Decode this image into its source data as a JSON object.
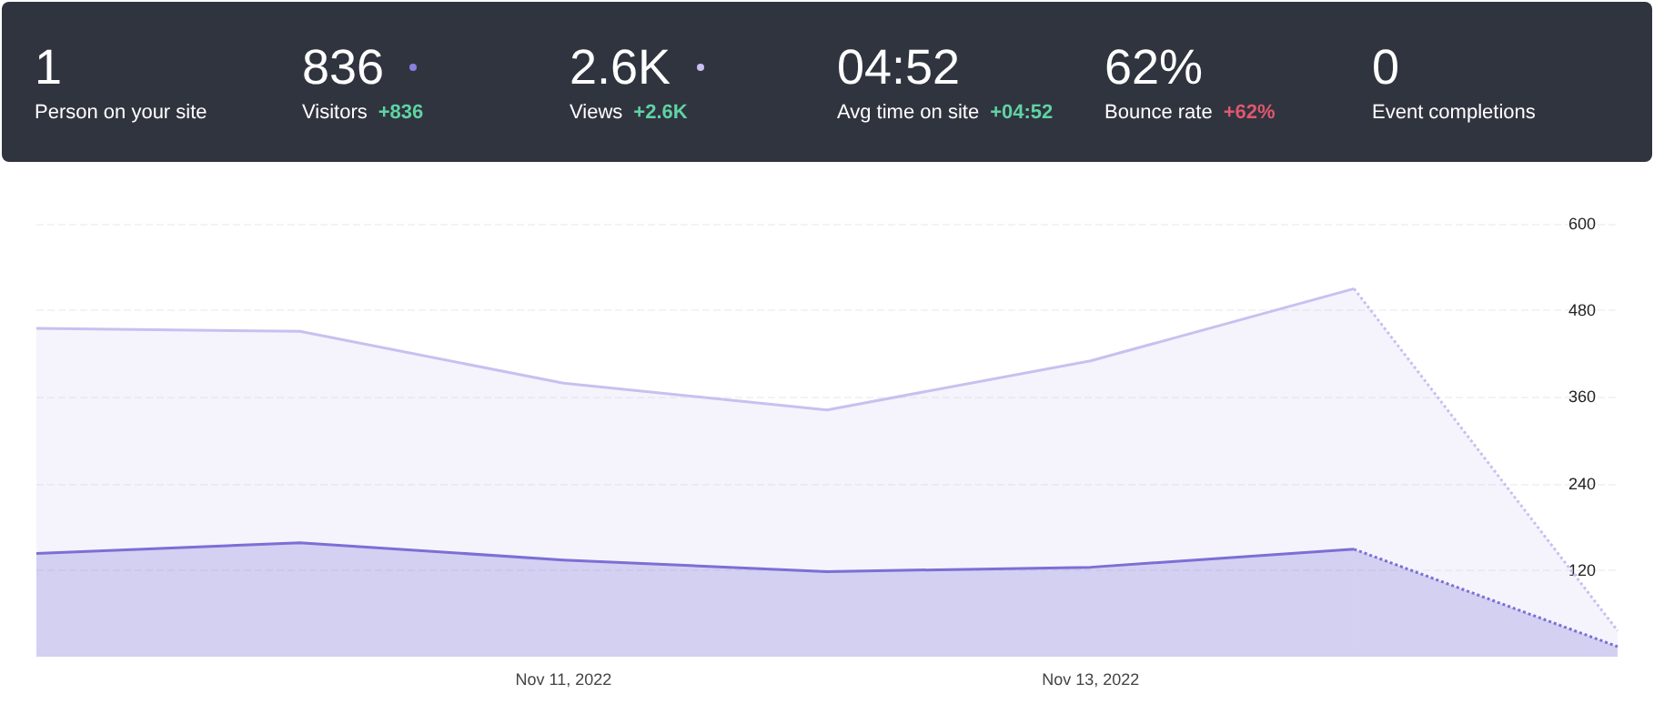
{
  "chart_data": [
    {
      "type": "other",
      "categories": [
        "Person on your site",
        "Visitors",
        "Views",
        "Avg time on site",
        "Bounce rate",
        "Event completions"
      ],
      "value_labels": [
        "1",
        "836",
        "2.6K",
        "04:52",
        "62%",
        "0"
      ],
      "annotations": [
        null,
        "+836",
        "+2.6K",
        "+04:52",
        "+62%",
        null
      ],
      "colors": [
        null,
        "#8b7fe0",
        "#c9c0f0",
        null,
        null,
        null
      ]
    },
    {
      "type": "area",
      "categories": [
        null,
        null,
        "Nov 11, 2022",
        null,
        "Nov 13, 2022",
        null,
        null
      ],
      "series": [
        {
          "color": "#c9c0f0",
          "line_style": "solid",
          "values": [
            455,
            451,
            379,
            342,
            410,
            510,
            null
          ]
        },
        {
          "color": "#c9c0f0",
          "line_style": "dotted",
          "values": [
            null,
            null,
            null,
            null,
            null,
            510,
            36
          ]
        },
        {
          "color": "#7b6fd6",
          "line_style": "solid",
          "values": [
            143,
            158,
            134,
            118,
            124,
            149,
            null
          ]
        },
        {
          "color": "#7b6fd6",
          "line_style": "dotted",
          "values": [
            null,
            null,
            null,
            null,
            null,
            149,
            14
          ]
        }
      ],
      "ylim": [
        0,
        600
      ],
      "yticks": [
        120,
        240,
        360,
        480,
        600
      ],
      "grid": "y",
      "marker": "none"
    }
  ]
}
